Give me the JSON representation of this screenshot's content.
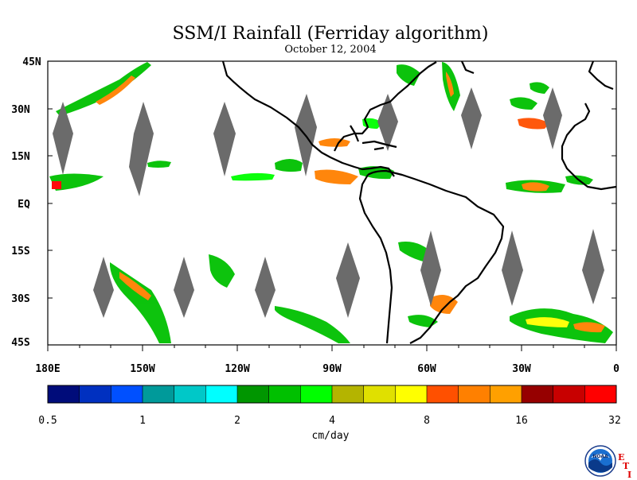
{
  "header": {
    "title": "SSM/I Rainfall (Ferriday algorithm)",
    "date": "October 12, 2004"
  },
  "map": {
    "lat_labels": [
      "45N",
      "30N",
      "15N",
      "EQ",
      "15S",
      "30S",
      "45S"
    ],
    "lon_labels": [
      "180E",
      "150W",
      "120W",
      "90W",
      "60W",
      "30W",
      "0"
    ],
    "lat_range": [
      -45,
      45
    ],
    "lon_range": [
      -180,
      0
    ],
    "missing_data_color": "#6b6b6b",
    "coastline_color": "#000000"
  },
  "colorbar": {
    "colors": [
      "#000c7a",
      "#0030c0",
      "#0050ff",
      "#009a9a",
      "#00c8c8",
      "#00ffff",
      "#009600",
      "#00c000",
      "#00ff00",
      "#b4b400",
      "#e0e000",
      "#ffff00",
      "#ff5000",
      "#ff8000",
      "#ffa000",
      "#960000",
      "#c80000",
      "#ff0000"
    ],
    "tick_labels": [
      "0.5",
      "1",
      "2",
      "4",
      "8",
      "16",
      "32"
    ],
    "unit": "cm/day"
  },
  "branding": {
    "logo_text": "NOAA",
    "letters": [
      "E",
      "T",
      "I"
    ]
  }
}
